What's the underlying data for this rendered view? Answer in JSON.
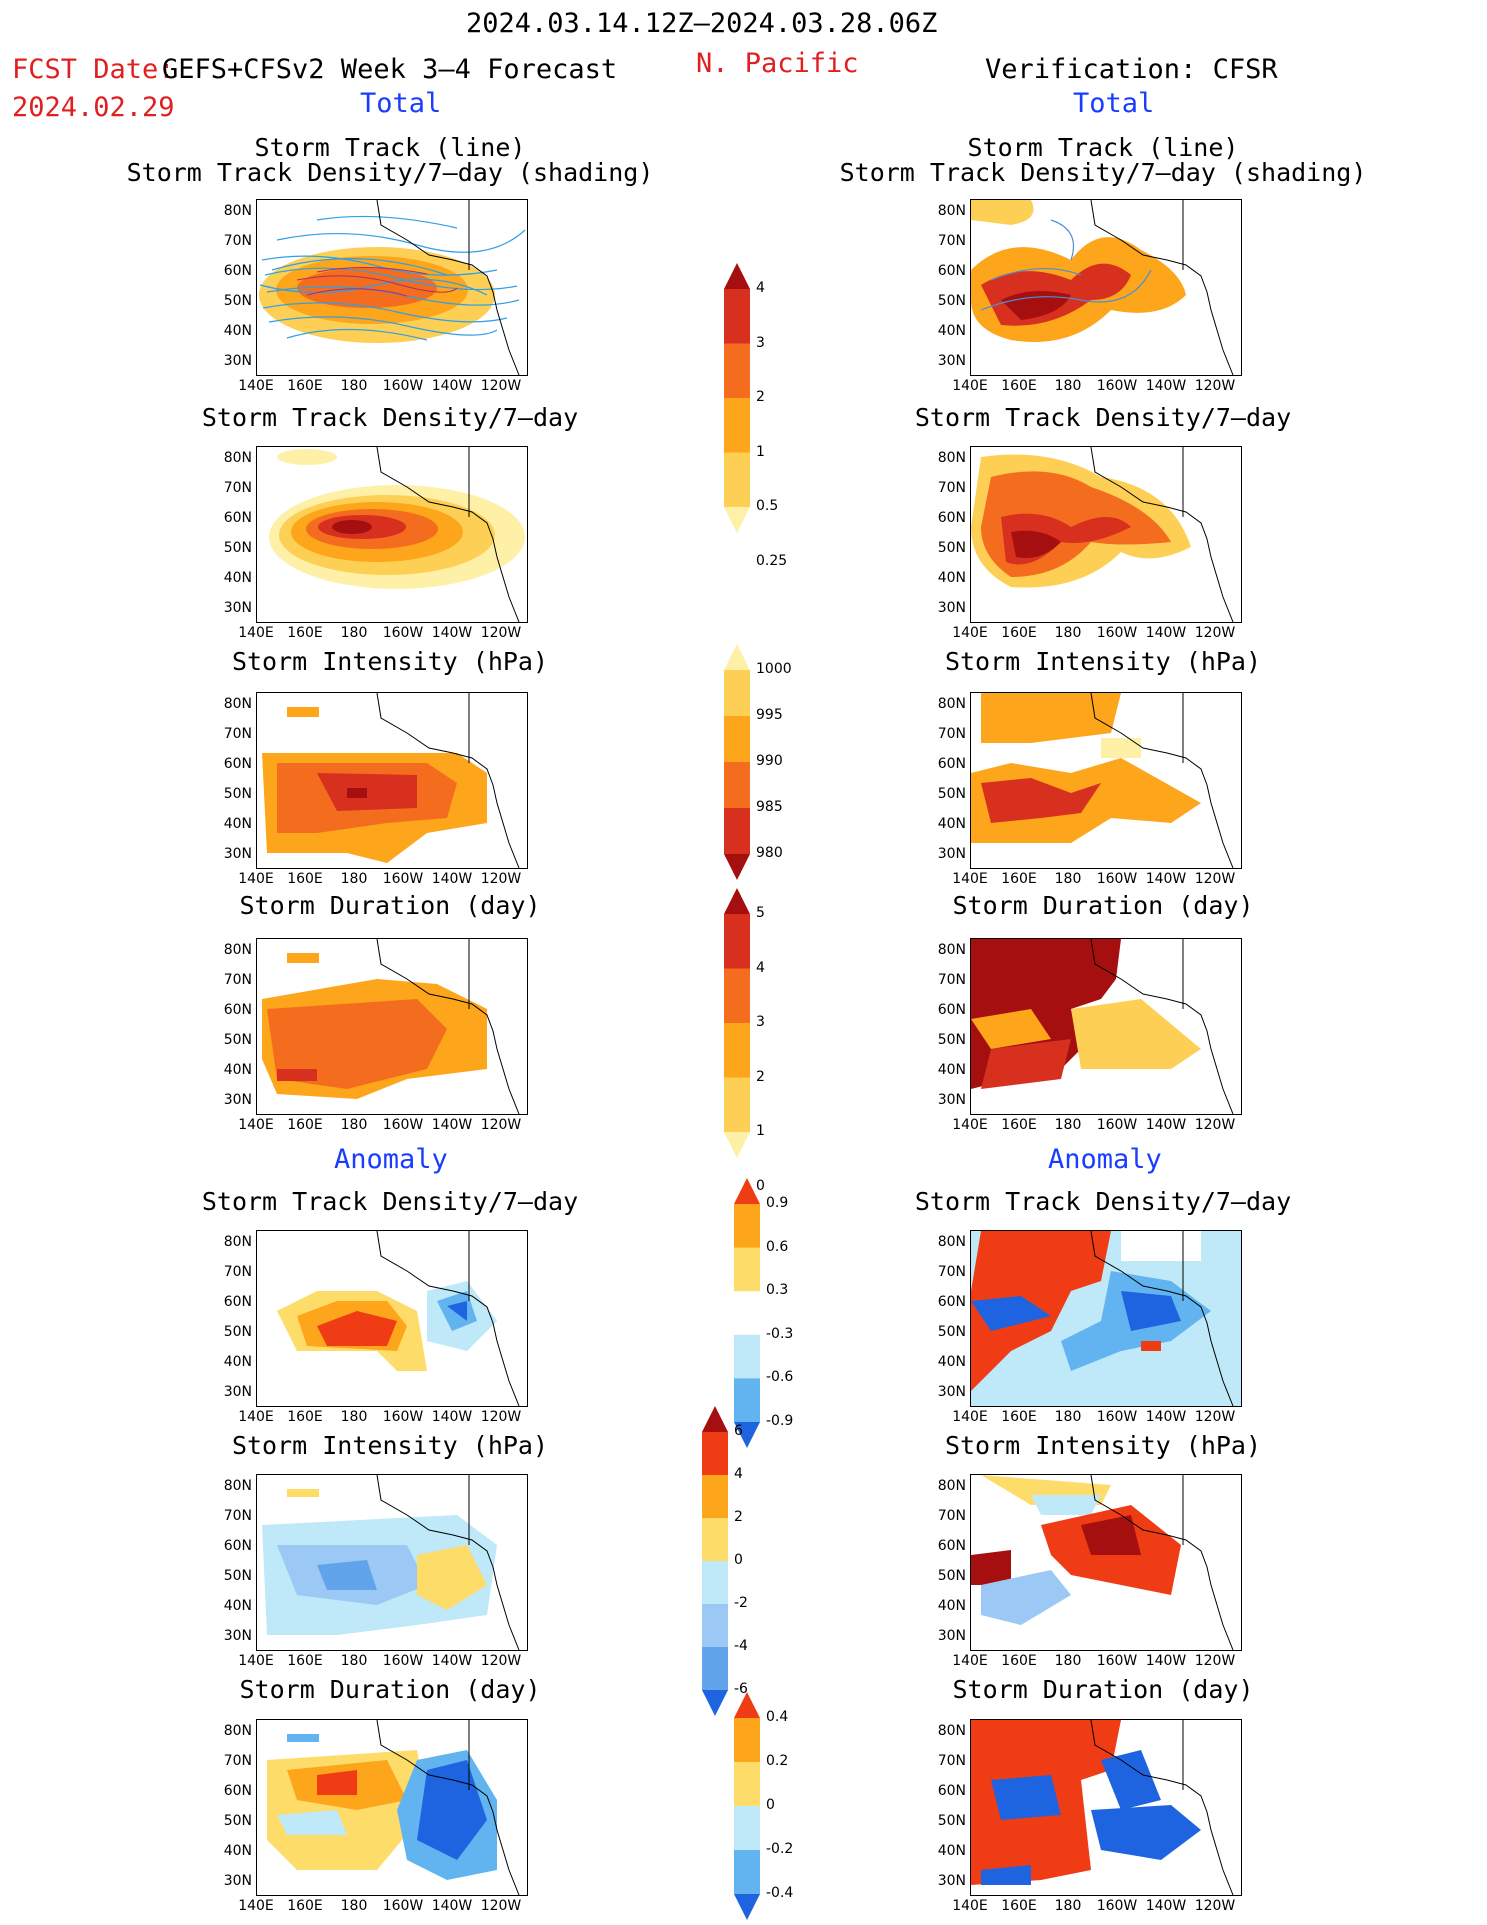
{
  "header": {
    "period": "2024.03.14.12Z–2024.03.28.06Z",
    "fcst_date_label": "FCST Date:",
    "fcst_date": "2024.02.29",
    "model": "GEFS+CFSv2 Week 3–4 Forecast",
    "region": "N. Pacific",
    "verification": "Verification: CFSR",
    "total_left": "Total",
    "total_right": "Total",
    "anomaly_left": "Anomaly",
    "anomaly_right": "Anomaly"
  },
  "titles": {
    "track_line": "Storm Track (line)",
    "track_shading": "Storm Track Density/7–day (shading)",
    "density": "Storm Track Density/7–day",
    "intensity": "Storm Intensity (hPa)",
    "duration": "Storm Duration (day)"
  },
  "axes": {
    "lat_labels": [
      "80N",
      "70N",
      "60N",
      "50N",
      "40N",
      "30N"
    ],
    "lon_labels": [
      "140E",
      "160E",
      "180",
      "160W",
      "140W",
      "120W"
    ]
  },
  "colorbars": {
    "density_total": {
      "labels": [
        "4",
        "3",
        "2",
        "1",
        "0.5",
        "0.25"
      ],
      "colors": [
        "#a50f0f",
        "#d7301f",
        "#f46d1f",
        "#fda51b",
        "#fdd055",
        "#fff0a8"
      ]
    },
    "intensity_total": {
      "labels": [
        "1000",
        "995",
        "990",
        "985",
        "980"
      ],
      "colors": [
        "#fff0a8",
        "#fdd055",
        "#fda51b",
        "#f46d1f",
        "#d7301f",
        "#a50f0f"
      ]
    },
    "duration_total": {
      "labels": [
        "5",
        "4",
        "3",
        "2",
        "1",
        "0"
      ],
      "colors": [
        "#a50f0f",
        "#d7301f",
        "#f46d1f",
        "#fda51b",
        "#fdd055",
        "#fff0a8"
      ]
    },
    "density_anom": {
      "labels": [
        "0.9",
        "0.6",
        "0.3",
        "-0.3",
        "-0.6",
        "-0.9"
      ],
      "colors": [
        "#f03c14",
        "#fda51b",
        "#fddc6a",
        "#ffffff",
        "#bfe8f8",
        "#62b4f0",
        "#1e64e0"
      ]
    },
    "intensity_anom": {
      "labels": [
        "6",
        "4",
        "2",
        "0",
        "-2",
        "-4",
        "-6"
      ],
      "colors": [
        "#a50f0f",
        "#f03c14",
        "#fda51b",
        "#fddc6a",
        "#bfe8f8",
        "#9bc8f4",
        "#62a4ec",
        "#1e64e0"
      ]
    },
    "duration_anom": {
      "labels": [
        "0.4",
        "0.2",
        "0",
        "-0.2",
        "-0.4"
      ],
      "colors": [
        "#f03c14",
        "#fda51b",
        "#fddc6a",
        "#bfe8f8",
        "#62b4f0",
        "#1e64e0"
      ]
    }
  }
}
